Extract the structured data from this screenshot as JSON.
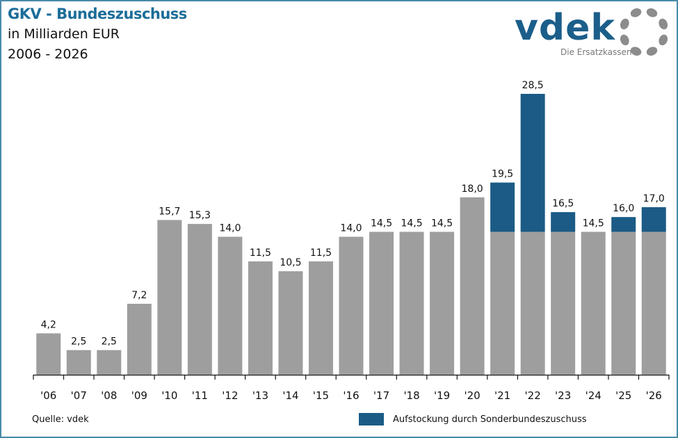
{
  "header": {
    "title": "GKV - Bundeszuschuss",
    "subtitle": "in Milliarden EUR",
    "years": "2006 - 2026"
  },
  "logo": {
    "name": "vdek",
    "tagline": "Die Ersatzkassen"
  },
  "footer": {
    "source": "Quelle: vdek",
    "legend_label": "Aufstockung durch Sonderbundeszuschuss"
  },
  "colors": {
    "base": "#9e9e9e",
    "special": "#1b5b86",
    "title": "#1b6d99"
  },
  "chart_data": {
    "type": "bar",
    "stacked": true,
    "title": "GKV - Bundeszuschuss",
    "subtitle": "in Milliarden EUR, 2006 - 2026",
    "xlabel": "",
    "ylabel": "",
    "ylim": [
      0,
      30
    ],
    "grid": false,
    "legend_position": "bottom-right",
    "categories": [
      "'06",
      "'07",
      "'08",
      "'09",
      "'10",
      "'11",
      "'12",
      "'13",
      "'14",
      "'15",
      "'16",
      "'17",
      "'18",
      "'19",
      "'20",
      "'21",
      "'22",
      "'23",
      "'24",
      "'25",
      "'26"
    ],
    "series": [
      {
        "name": "Bundeszuschuss",
        "values": [
          4.2,
          2.5,
          2.5,
          7.2,
          15.7,
          15.3,
          14.0,
          11.5,
          10.5,
          11.5,
          14.0,
          14.5,
          14.5,
          14.5,
          18.0,
          14.5,
          14.5,
          14.5,
          14.5,
          14.5,
          14.5
        ]
      },
      {
        "name": "Aufstockung durch Sonderbundeszuschuss",
        "values": [
          0,
          0,
          0,
          0,
          0,
          0,
          0,
          0,
          0,
          0,
          0,
          0,
          0,
          0,
          0,
          5.0,
          14.0,
          2.0,
          0,
          1.5,
          2.5
        ]
      }
    ],
    "totals": [
      4.2,
      2.5,
      2.5,
      7.2,
      15.7,
      15.3,
      14.0,
      11.5,
      10.5,
      11.5,
      14.0,
      14.5,
      14.5,
      14.5,
      18.0,
      19.5,
      28.5,
      16.5,
      14.5,
      16.0,
      17.0
    ],
    "data_labels": [
      "4,2",
      "2,5",
      "2,5",
      "7,2",
      "15,7",
      "15,3",
      "14,0",
      "11,5",
      "10,5",
      "11,5",
      "14,0",
      "14,5",
      "14,5",
      "14,5",
      "18,0",
      "19,5",
      "28,5",
      "16,5",
      "14,5",
      "16,0",
      "17,0"
    ]
  }
}
